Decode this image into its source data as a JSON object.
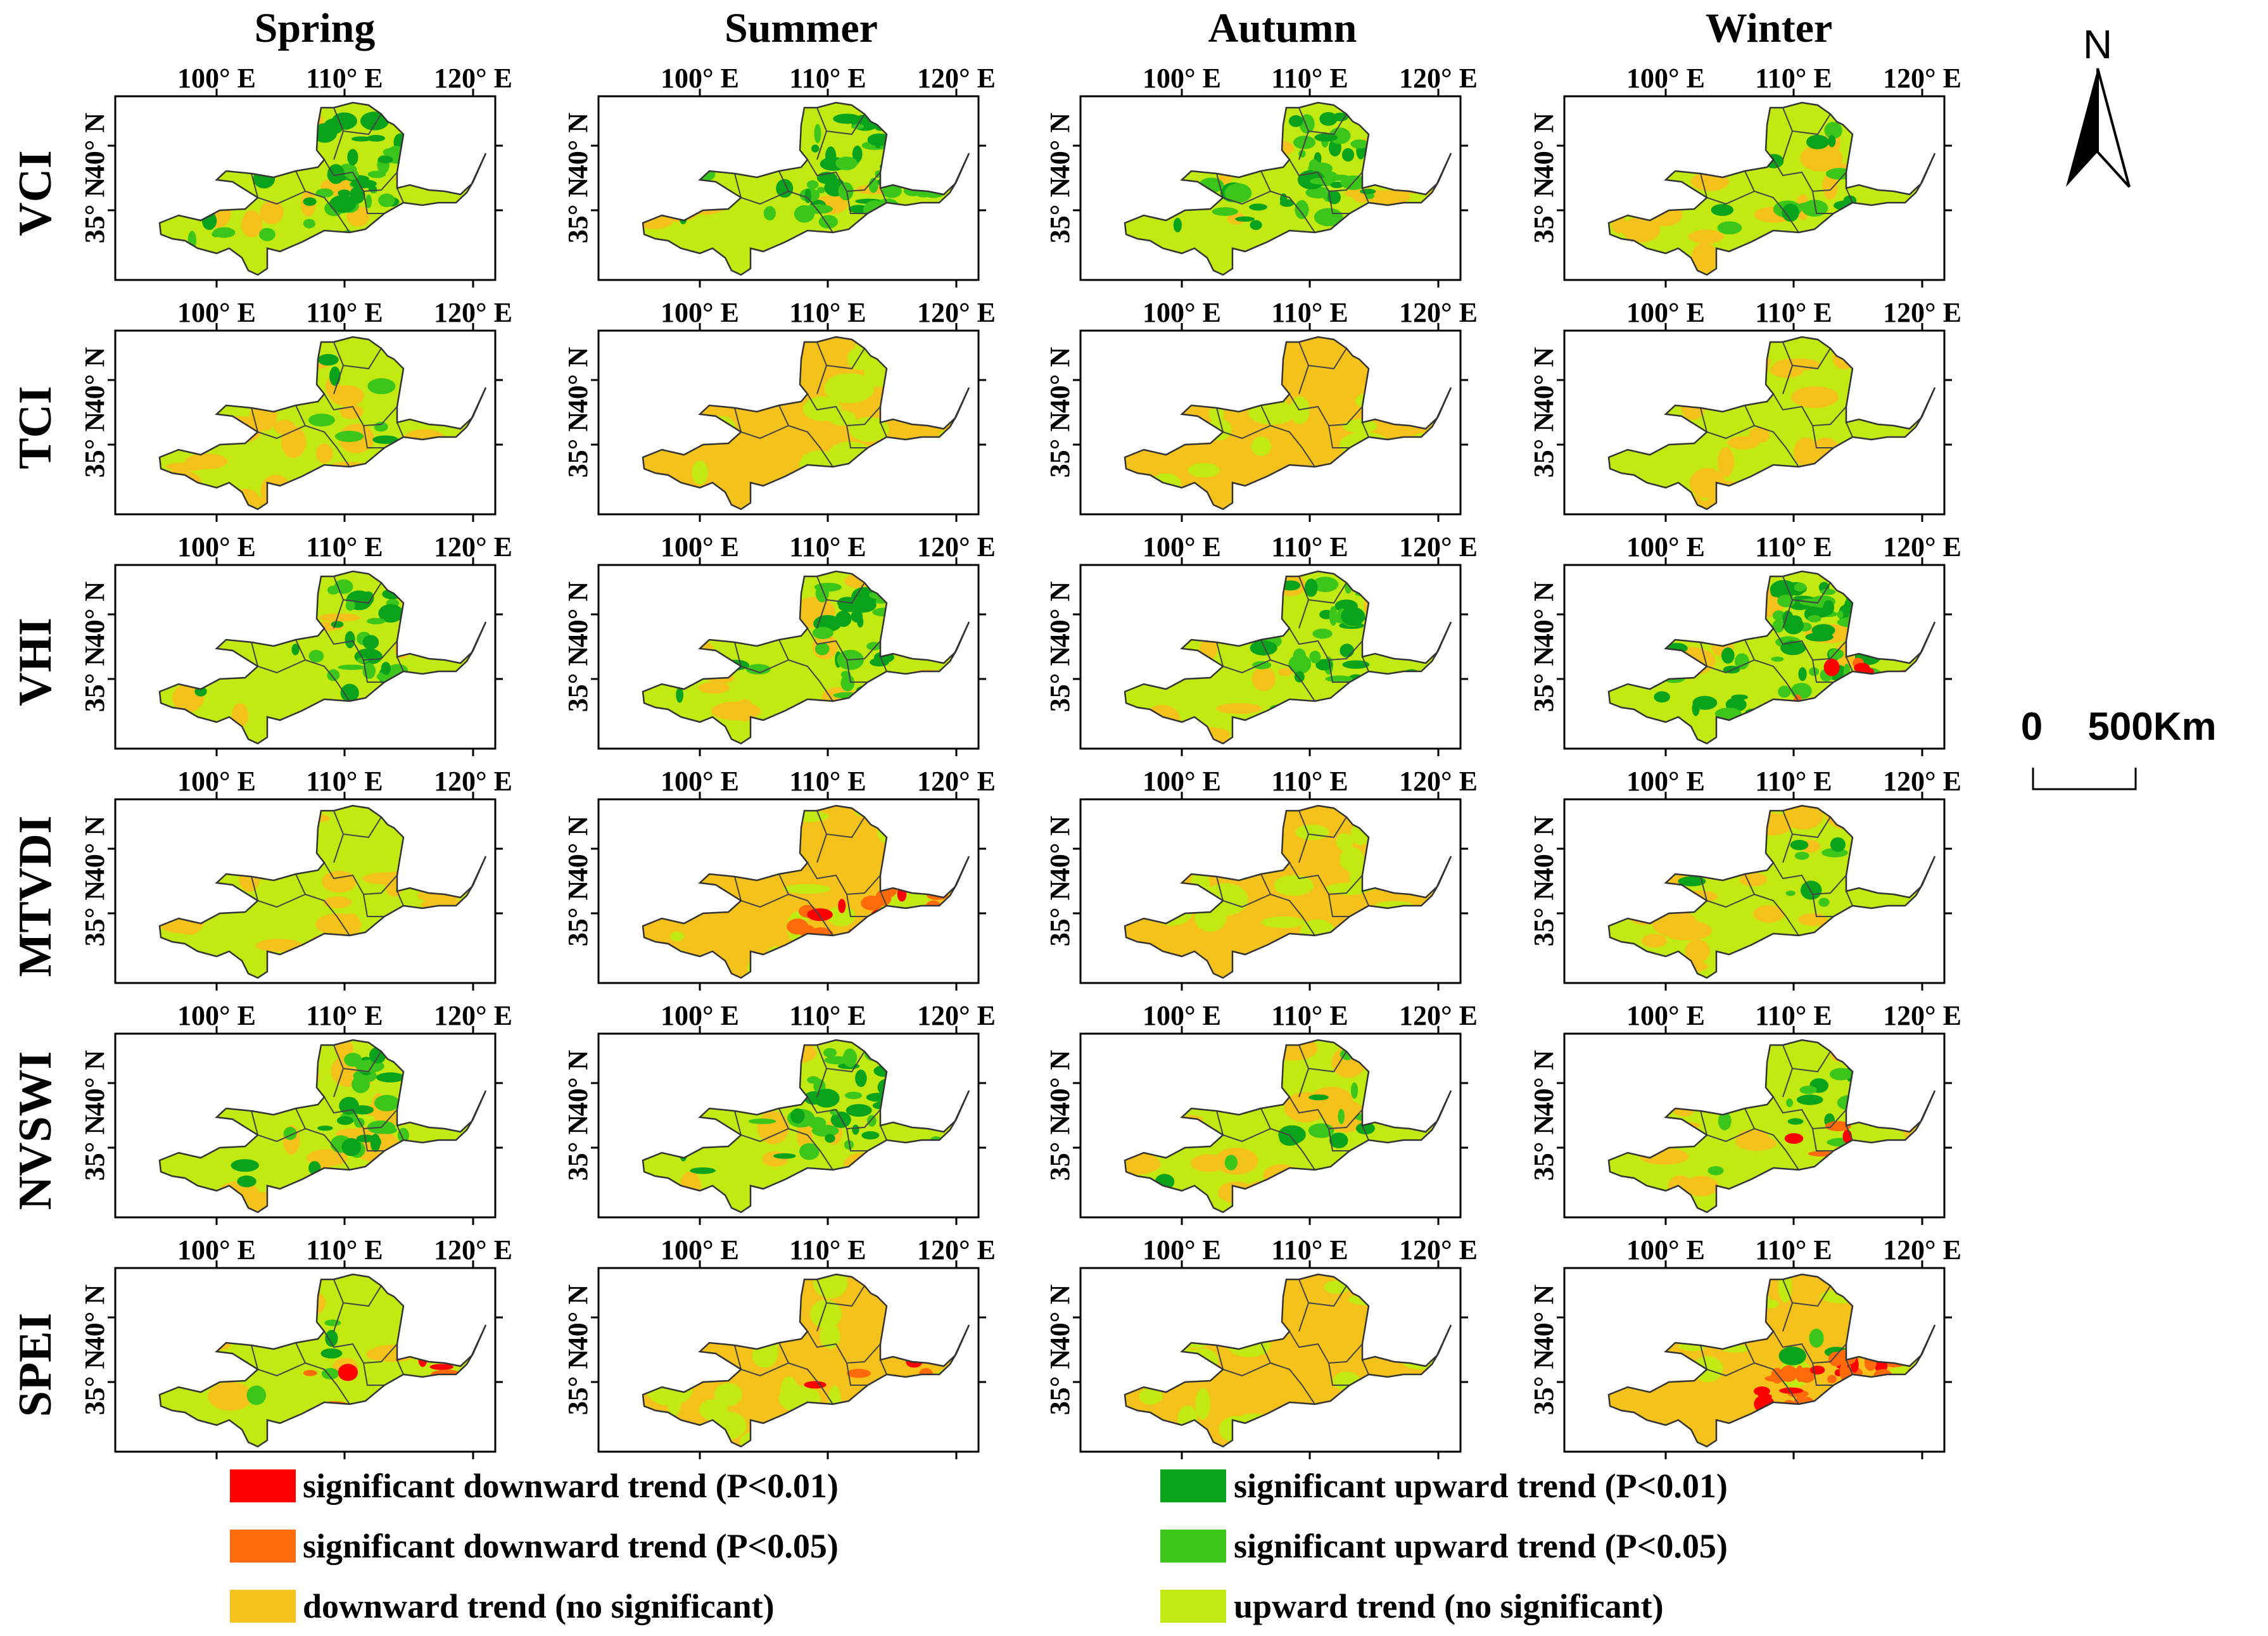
{
  "columns": [
    "Spring",
    "Summer",
    "Autumn",
    "Winter"
  ],
  "rows": [
    "VCI",
    "TCI",
    "VHI",
    "MTVDI",
    "NVSWI",
    "SPEI"
  ],
  "axis_ticks": {
    "lon": [
      "100° E",
      "110° E",
      "120° E"
    ],
    "lat": [
      "40° N",
      "35° N"
    ]
  },
  "north_arrow": {
    "label": "N"
  },
  "scale_bar": {
    "zero": "0",
    "distance": "500Km"
  },
  "legend": [
    {
      "label": "significant downward trend (P<0.01)",
      "color": "#ff0000"
    },
    {
      "label": "significant downward trend (P<0.05)",
      "color": "#ff6a0a"
    },
    {
      "label": "downward trend (no significant)",
      "color": "#f4c21a"
    },
    {
      "label": "significant upward trend (P<0.01)",
      "color": "#0ca31c"
    },
    {
      "label": "significant upward trend (P<0.05)",
      "color": "#3cc61c"
    },
    {
      "label": "upward trend (no significant)",
      "color": "#c2ea12"
    }
  ],
  "panels": [
    {
      "row": "VCI",
      "col": "Spring",
      "upward": 0.8,
      "sig_up": 0.5,
      "sig_down": 0
    },
    {
      "row": "VCI",
      "col": "Summer",
      "upward": 0.8,
      "sig_up": 0.5,
      "sig_down": 0
    },
    {
      "row": "VCI",
      "col": "Autumn",
      "upward": 0.75,
      "sig_up": 0.5,
      "sig_down": 0
    },
    {
      "row": "VCI",
      "col": "Winter",
      "upward": 0.6,
      "sig_up": 0.15,
      "sig_down": 0
    },
    {
      "row": "TCI",
      "col": "Spring",
      "upward": 0.6,
      "sig_up": 0.1,
      "sig_down": 0
    },
    {
      "row": "TCI",
      "col": "Summer",
      "upward": 0.45,
      "sig_up": 0,
      "sig_down": 0
    },
    {
      "row": "TCI",
      "col": "Autumn",
      "upward": 0.45,
      "sig_up": 0,
      "sig_down": 0
    },
    {
      "row": "TCI",
      "col": "Winter",
      "upward": 0.55,
      "sig_up": 0,
      "sig_down": 0
    },
    {
      "row": "VHI",
      "col": "Spring",
      "upward": 0.8,
      "sig_up": 0.35,
      "sig_down": 0
    },
    {
      "row": "VHI",
      "col": "Summer",
      "upward": 0.75,
      "sig_up": 0.35,
      "sig_down": 0
    },
    {
      "row": "VHI",
      "col": "Autumn",
      "upward": 0.7,
      "sig_up": 0.4,
      "sig_down": 0
    },
    {
      "row": "VHI",
      "col": "Winter",
      "upward": 0.85,
      "sig_up": 0.75,
      "sig_down": 0.1
    },
    {
      "row": "MTVDI",
      "col": "Spring",
      "upward": 0.5,
      "sig_up": 0,
      "sig_down": 0
    },
    {
      "row": "MTVDI",
      "col": "Summer",
      "upward": 0.45,
      "sig_up": 0,
      "sig_down": 0.25
    },
    {
      "row": "MTVDI",
      "col": "Autumn",
      "upward": 0.35,
      "sig_up": 0,
      "sig_down": 0
    },
    {
      "row": "MTVDI",
      "col": "Winter",
      "upward": 0.55,
      "sig_up": 0.1,
      "sig_down": 0
    },
    {
      "row": "NVSWI",
      "col": "Spring",
      "upward": 0.75,
      "sig_up": 0.4,
      "sig_down": 0
    },
    {
      "row": "NVSWI",
      "col": "Summer",
      "upward": 0.75,
      "sig_up": 0.4,
      "sig_down": 0
    },
    {
      "row": "NVSWI",
      "col": "Autumn",
      "upward": 0.7,
      "sig_up": 0.15,
      "sig_down": 0
    },
    {
      "row": "NVSWI",
      "col": "Winter",
      "upward": 0.65,
      "sig_up": 0.15,
      "sig_down": 0.05
    },
    {
      "row": "SPEI",
      "col": "Spring",
      "upward": 0.85,
      "sig_up": 0.05,
      "sig_down": 0.1
    },
    {
      "row": "SPEI",
      "col": "Summer",
      "upward": 0.45,
      "sig_up": 0,
      "sig_down": 0.05
    },
    {
      "row": "SPEI",
      "col": "Autumn",
      "upward": 0.4,
      "sig_up": 0,
      "sig_down": 0
    },
    {
      "row": "SPEI",
      "col": "Winter",
      "upward": 0.25,
      "sig_up": 0.05,
      "sig_down": 0.6
    }
  ]
}
